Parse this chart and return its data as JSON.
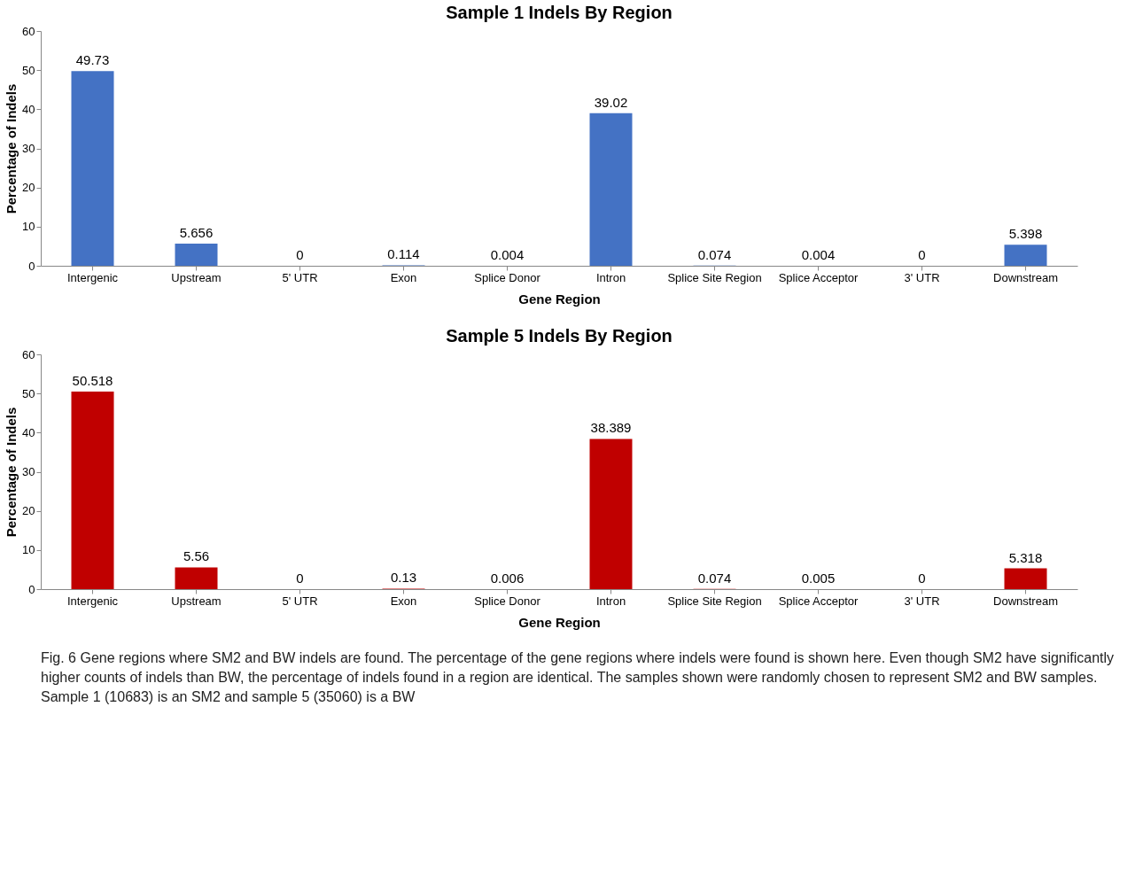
{
  "chart_data": [
    {
      "type": "bar",
      "title": "Sample 1 Indels By Region",
      "xlabel": "Gene Region",
      "ylabel": "Percentage of Indels",
      "categories": [
        "Intergenic",
        "Upstream",
        "5' UTR",
        "Exon",
        "Splice Donor",
        "Intron",
        "Splice Site Region",
        "Splice Acceptor",
        "3' UTR",
        "Downstream"
      ],
      "values": [
        49.73,
        5.656,
        0,
        0.114,
        0.004,
        39.02,
        0.074,
        0.004,
        0,
        5.398
      ],
      "color": "#4472c4",
      "ylim": [
        0,
        60
      ],
      "yticks": [
        0,
        10,
        20,
        30,
        40,
        50,
        60
      ],
      "grid": false,
      "data_labels": true
    },
    {
      "type": "bar",
      "title": "Sample 5 Indels By Region",
      "xlabel": "Gene Region",
      "ylabel": "Percentage of Indels",
      "categories": [
        "Intergenic",
        "Upstream",
        "5' UTR",
        "Exon",
        "Splice Donor",
        "Intron",
        "Splice Site Region",
        "Splice Acceptor",
        "3' UTR",
        "Downstream"
      ],
      "values": [
        50.518,
        5.56,
        0,
        0.13,
        0.006,
        38.389,
        0.074,
        0.005,
        0,
        5.318
      ],
      "color": "#c00000",
      "ylim": [
        0,
        60
      ],
      "yticks": [
        0,
        10,
        20,
        30,
        40,
        50,
        60
      ],
      "grid": false,
      "data_labels": true,
      "annotations": [
        "Fig. 6 Gene regions where SM2 and BW indels are found. The percentage of the gene regions where indels were found is shown here. Even though SM2 have significantly higher counts of indels than BW, the percentage of indels found in a region are identical. The samples shown were randomly chosen to represent SM2 and BW samples. Sample 1 (10683) is an SM2 and sample 5 (35060) is a BW"
      ]
    }
  ]
}
